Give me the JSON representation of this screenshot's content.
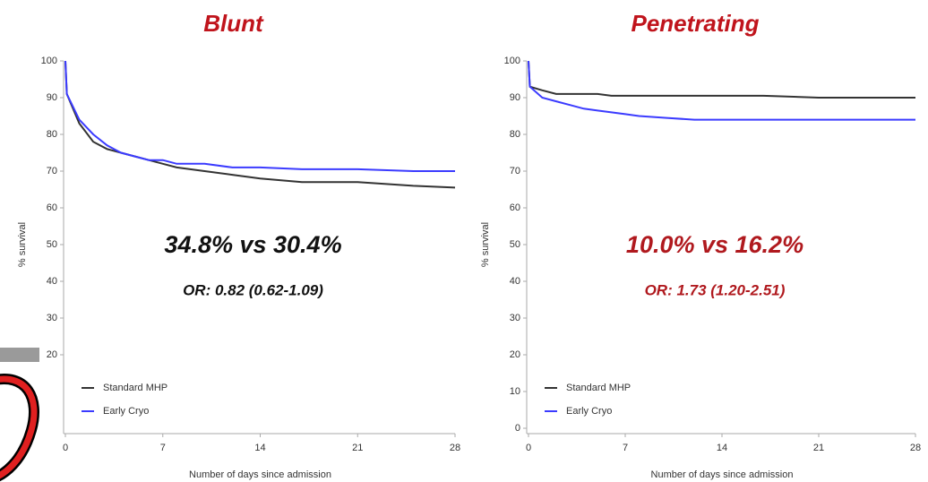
{
  "chart_data": [
    {
      "type": "line",
      "title": "Blunt",
      "x_label": "Number of days since admission",
      "y_label": "% survival",
      "annotations": [
        {
          "text": "34.8% vs 30.4%",
          "color": "#111111"
        },
        {
          "text": "OR: 0.82 (0.62-1.09)",
          "color": "#111111"
        }
      ],
      "x": [
        0,
        0.1,
        1,
        2,
        3,
        4,
        5,
        6,
        7,
        8,
        10,
        12,
        14,
        17,
        21,
        25,
        28
      ],
      "series": [
        {
          "name": "Standard MHP",
          "color": "#333333",
          "values": [
            100,
            91,
            83,
            78,
            76,
            75,
            74,
            73,
            72,
            71,
            70,
            69,
            68,
            67,
            67,
            66,
            65.5
          ]
        },
        {
          "name": "Early Cryo",
          "color": "#3b3bff",
          "values": [
            100,
            91,
            84,
            80,
            77,
            75,
            74,
            73,
            73,
            72,
            72,
            71,
            71,
            70.5,
            70.5,
            70,
            70
          ]
        }
      ],
      "xlim": [
        0,
        28
      ],
      "xticks": [
        0,
        7,
        14,
        21,
        28
      ],
      "ylim": [
        0,
        100
      ],
      "yticks": [
        20,
        30,
        40,
        50,
        60,
        70,
        80,
        90,
        100
      ]
    },
    {
      "type": "line",
      "title": "Penetrating",
      "x_label": "Number of days since admission",
      "y_label": "% survival",
      "annotations": [
        {
          "text": "10.0% vs 16.2%",
          "color": "#b0191e"
        },
        {
          "text": "OR: 1.73 (1.20-2.51)",
          "color": "#b0191e"
        }
      ],
      "x": [
        0,
        0.1,
        1,
        2,
        3,
        4,
        5,
        6,
        7,
        8,
        10,
        12,
        14,
        17,
        21,
        25,
        28
      ],
      "series": [
        {
          "name": "Standard MHP",
          "color": "#333333",
          "values": [
            100,
            93,
            92,
            91,
            91,
            91,
            91,
            90.5,
            90.5,
            90.5,
            90.5,
            90.5,
            90.5,
            90.5,
            90,
            90,
            90
          ]
        },
        {
          "name": "Early Cryo",
          "color": "#3b3bff",
          "values": [
            100,
            93,
            90,
            89,
            88,
            87,
            86.5,
            86,
            85.5,
            85,
            84.5,
            84,
            84,
            84,
            84,
            84,
            84
          ]
        }
      ],
      "xlim": [
        0,
        28
      ],
      "xticks": [
        0,
        7,
        14,
        21,
        28
      ],
      "ylim": [
        0,
        100
      ],
      "yticks": [
        0,
        10,
        20,
        30,
        40,
        50,
        60,
        70,
        80,
        90,
        100
      ]
    }
  ]
}
